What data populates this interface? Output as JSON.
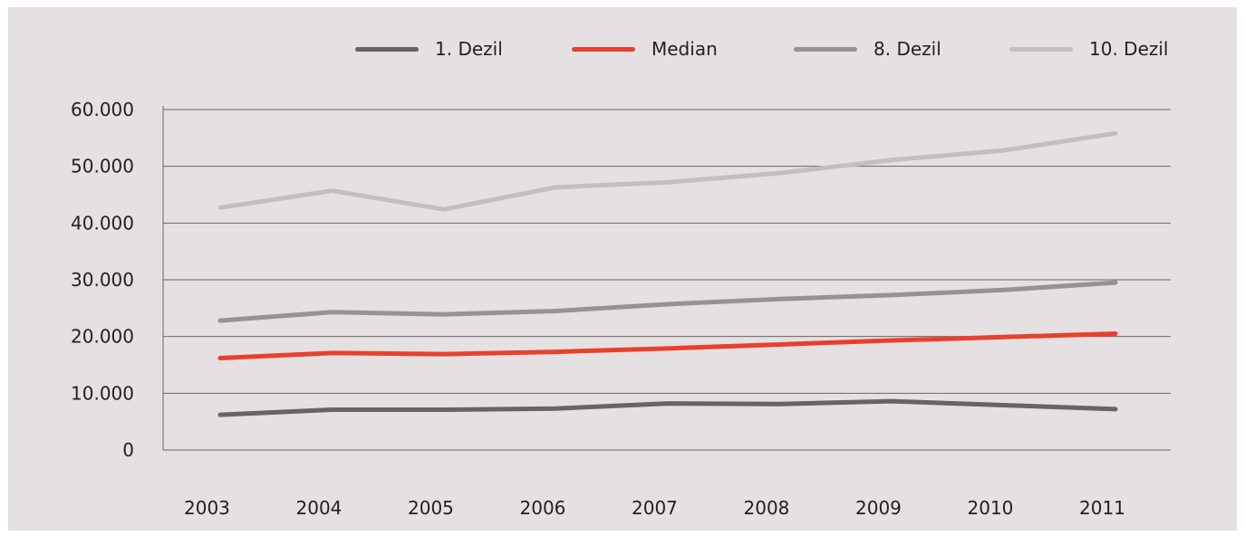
{
  "chart_data": {
    "type": "line",
    "title": "",
    "xlabel": "",
    "ylabel": "",
    "categories": [
      "2003",
      "2004",
      "2005",
      "2006",
      "2007",
      "2008",
      "2009",
      "2010",
      "2011"
    ],
    "ylim": [
      0,
      60000
    ],
    "yticks": [
      0,
      10000,
      20000,
      30000,
      40000,
      50000,
      60000
    ],
    "ytick_labels": [
      "0",
      "10.000",
      "20.000",
      "30.000",
      "40.000",
      "50.000",
      "60.000"
    ],
    "grid": true,
    "legend_position": "top",
    "series": [
      {
        "name": "1. Dezil",
        "color": "#6b6266",
        "values": [
          6200,
          7100,
          7100,
          7300,
          8200,
          8100,
          8600,
          7900,
          7200
        ]
      },
      {
        "name": "Median",
        "color": "#e8402d",
        "values": [
          16200,
          17100,
          16900,
          17300,
          17900,
          18600,
          19300,
          19900,
          20500
        ]
      },
      {
        "name": "8. Dezil",
        "color": "#9b9093",
        "values": [
          22800,
          24300,
          23900,
          24500,
          25700,
          26600,
          27300,
          28200,
          29500
        ]
      },
      {
        "name": "10. Dezil",
        "color": "#c5bec1",
        "values": [
          42700,
          45700,
          42400,
          46300,
          47200,
          48800,
          51100,
          52800,
          55800
        ]
      }
    ]
  }
}
